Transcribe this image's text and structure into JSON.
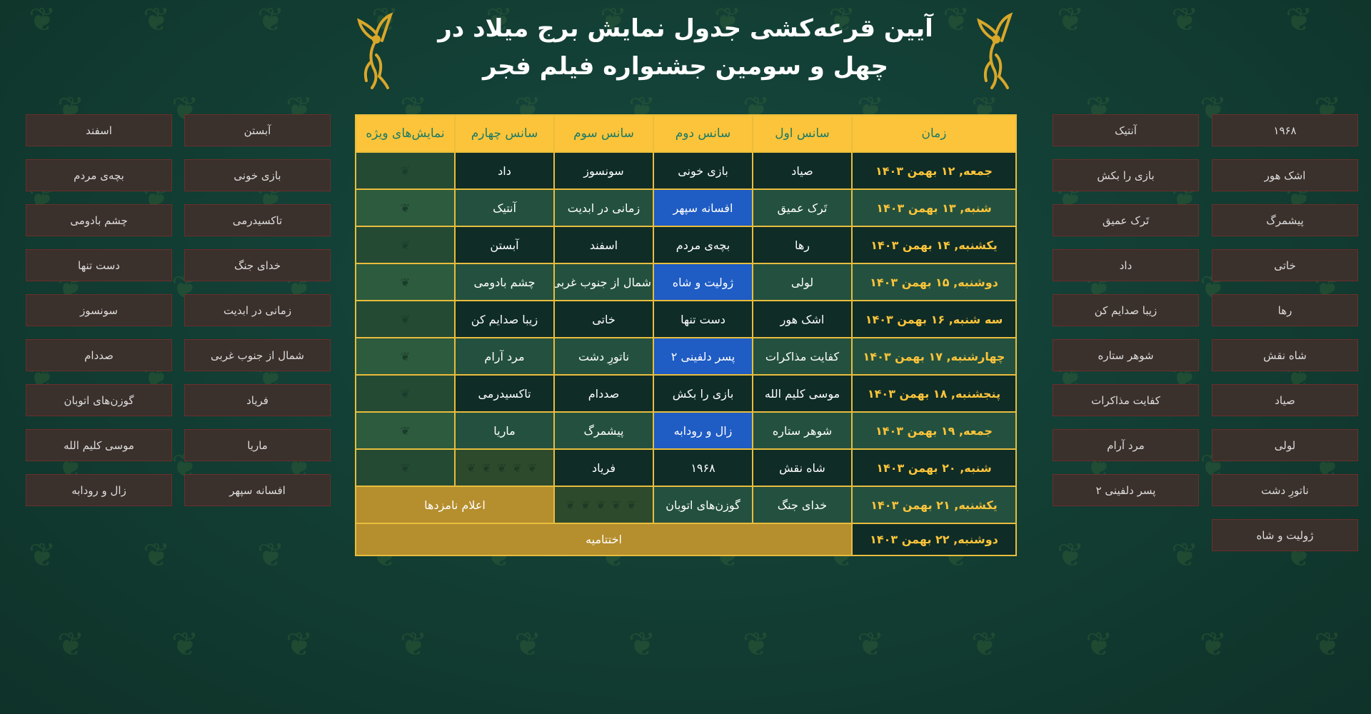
{
  "header": {
    "title_line1": "آیین قرعه‌کشی جدول نمایش برج میلاد در",
    "title_line2": "چهل و سومین جشنواره فیلم فجر"
  },
  "colors": {
    "header_bg": "#fcc43a",
    "header_text": "#1b7a66",
    "date_text": "#fcc43a",
    "highlight_blue": "#1f5cc4",
    "gold": "#b58e2e",
    "border": "#e9bd3d",
    "background": "#13433a",
    "film_box": "#3a302c"
  },
  "icons": {
    "logo": "simorgh-phoenix-icon",
    "special_cell": "simorgh-icon"
  },
  "table": {
    "columns": [
      "زمان",
      "سانس اول",
      "سانس دوم",
      "سانس سوم",
      "سانس چهارم",
      "نمایش‌های ویژه"
    ],
    "rows": [
      {
        "date": "جمعه, ۱۲ بهمن ۱۴۰۳",
        "s1": "صیاد",
        "s2": "بازی خونی",
        "s3": "سونسوز",
        "s4": "داد"
      },
      {
        "date": "شنبه, ۱۳ بهمن ۱۴۰۳",
        "s1": "تَرک عمیق",
        "s2": "افسانه سپهر",
        "s2_highlight": true,
        "s3": "زمانی در ابدیت",
        "s4": "آنتیک"
      },
      {
        "date": "یکشنبه, ۱۴ بهمن ۱۴۰۳",
        "s1": "رها",
        "s2": "بچه‌ی مردم",
        "s3": "اسفند",
        "s4": "آبستن"
      },
      {
        "date": "دوشنبه, ۱۵ بهمن ۱۴۰۳",
        "s1": "لولی",
        "s2": "ژولیت و شاه",
        "s2_highlight": true,
        "s3": "شمال از جنوب غربی",
        "s4": "چشم بادومی"
      },
      {
        "date": "سه شنبه, ۱۶ بهمن ۱۴۰۳",
        "s1": "اشک هور",
        "s2": "دست تنها",
        "s3": "خاتی",
        "s4": "زیبا صدایم کن"
      },
      {
        "date": "چهارشنبه, ۱۷ بهمن ۱۴۰۳",
        "s1": "کفایت مذاکرات",
        "s2": "پسر دلفینی ۲",
        "s2_highlight": true,
        "s3": "ناتورِ دشت",
        "s4": "مرد آرام"
      },
      {
        "date": "پنجشنبه, ۱۸ بهمن ۱۴۰۳",
        "s1": "موسی کلیم الله",
        "s2": "بازی را بکش",
        "s3": "صددام",
        "s4": "تاکسیدرمی"
      },
      {
        "date": "جمعه, ۱۹ بهمن ۱۴۰۳",
        "s1": "شوهر ستاره",
        "s2": "زال و رودابه",
        "s2_highlight": true,
        "s3": "پیشمرگ",
        "s4": "ماریا"
      },
      {
        "date": "شنبه, ۲۰ بهمن ۱۴۰۳",
        "s1": "شاه نقش",
        "s2": "۱۹۶۸",
        "s3": "فریاد"
      },
      {
        "date": "یکشنبه, ۲۱ بهمن ۱۴۰۳",
        "s1": "خدای جنگ",
        "s2": "گوزن‌های اتوبان",
        "merged": "اعلام نامزدها"
      },
      {
        "date": "دوشنبه, ۲۲ بهمن ۱۴۰۳",
        "merged": "اختتامیه"
      }
    ]
  },
  "left_films": {
    "col_a": [
      "آبستن",
      "بازی خونی",
      "تاکسیدرمی",
      "خدای جنگ",
      "زمانی در ابدیت",
      "شمال از جنوب غربی",
      "فریاد",
      "ماریا",
      "افسانه سپهر"
    ],
    "col_b": [
      "اسفند",
      "بچه‌ی مردم",
      "چشم بادومی",
      "دست تنها",
      "سونسوز",
      "صددام",
      "گوزن‌های اتوبان",
      "موسی کلیم الله",
      "زال و رودابه"
    ]
  },
  "right_films": {
    "col_a": [
      "۱۹۶۸",
      "اشک هور",
      "پیشمرگ",
      "خاتی",
      "رها",
      "شاه نقش",
      "صیاد",
      "لولی",
      "ناتورِ دشت",
      "ژولیت و شاه"
    ],
    "col_b": [
      "آنتیک",
      "بازی را بکش",
      "تَرک عمیق",
      "داد",
      "زیبا صدایم کن",
      "شوهر ستاره",
      "کفایت مذاکرات",
      "مرد آرام",
      "پسر دلفینی ۲"
    ]
  }
}
